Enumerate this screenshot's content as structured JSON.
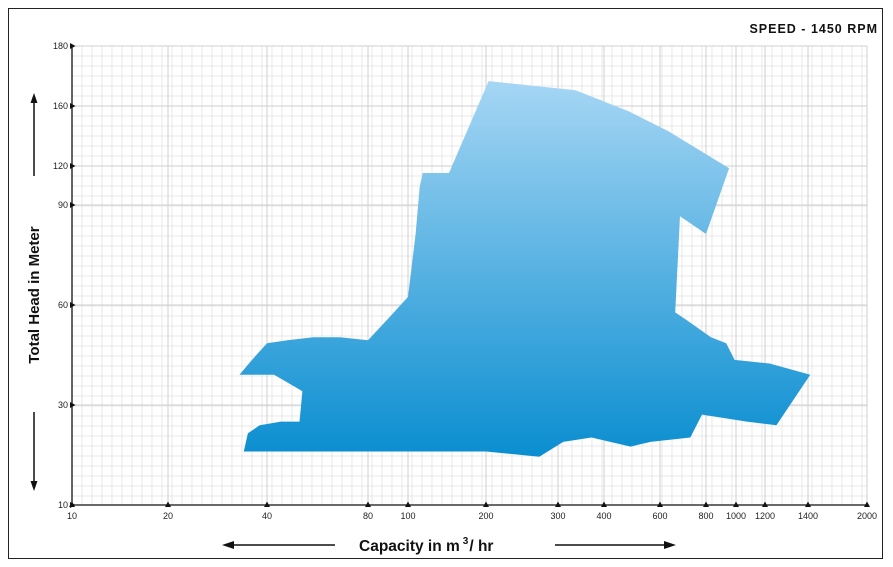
{
  "chart_data": {
    "type": "area",
    "title": "SPEED - 1450 RPM",
    "xlabel_prefix": "Capacity in m",
    "xlabel_sup": "3",
    "xlabel_suffix": "/ hr",
    "ylabel": "Total Head in Meter",
    "x_scale": "log",
    "y_scale": "log",
    "xlim": [
      10,
      2000
    ],
    "ylim": [
      10,
      180
    ],
    "x_ticks": [
      {
        "value": 10,
        "label": "10"
      },
      {
        "value": 20,
        "label": "20"
      },
      {
        "value": 40,
        "label": "40"
      },
      {
        "value": 80,
        "label": "80"
      },
      {
        "value": 100,
        "label": "100"
      },
      {
        "value": 200,
        "label": "200"
      },
      {
        "value": 300,
        "label": "300"
      },
      {
        "value": 400,
        "label": "400"
      },
      {
        "value": 600,
        "label": "600"
      },
      {
        "value": 800,
        "label": "800"
      },
      {
        "value": 1000,
        "label": "1000"
      },
      {
        "value": 1200,
        "label": "1200"
      },
      {
        "value": 1400,
        "label": "1400"
      },
      {
        "value": 2000,
        "label": "2000"
      }
    ],
    "y_ticks": [
      {
        "value": 10,
        "label": "10"
      },
      {
        "value": 30,
        "label": "30"
      },
      {
        "value": 60,
        "label": "60"
      },
      {
        "value": 90,
        "label": "90"
      },
      {
        "value": 120,
        "label": "120"
      },
      {
        "value": 160,
        "label": "160"
      },
      {
        "value": 180,
        "label": "180"
      }
    ],
    "grid": true,
    "fill_color_top": "#a6d6f4",
    "fill_color_bottom": "#0a8ed0",
    "coverage_region": [
      {
        "x": 33,
        "y": 37
      },
      {
        "x": 36,
        "y": 41
      },
      {
        "x": 40,
        "y": 46
      },
      {
        "x": 46,
        "y": 47
      },
      {
        "x": 55,
        "y": 48
      },
      {
        "x": 66,
        "y": 48
      },
      {
        "x": 80,
        "y": 47
      },
      {
        "x": 90,
        "y": 55
      },
      {
        "x": 100,
        "y": 62
      },
      {
        "x": 107,
        "y": 80
      },
      {
        "x": 111,
        "y": 103
      },
      {
        "x": 114,
        "y": 114
      },
      {
        "x": 144,
        "y": 114
      },
      {
        "x": 203,
        "y": 168
      },
      {
        "x": 335,
        "y": 165
      },
      {
        "x": 478,
        "y": 156
      },
      {
        "x": 630,
        "y": 142
      },
      {
        "x": 950,
        "y": 118
      },
      {
        "x": 800,
        "y": 80
      },
      {
        "x": 680,
        "y": 86
      },
      {
        "x": 660,
        "y": 57
      },
      {
        "x": 710,
        "y": 54
      },
      {
        "x": 830,
        "y": 48
      },
      {
        "x": 930,
        "y": 46
      },
      {
        "x": 990,
        "y": 41
      },
      {
        "x": 1220,
        "y": 40
      },
      {
        "x": 1420,
        "y": 37
      },
      {
        "x": 1250,
        "y": 24
      },
      {
        "x": 1070,
        "y": 25
      },
      {
        "x": 780,
        "y": 27
      },
      {
        "x": 725,
        "y": 21
      },
      {
        "x": 560,
        "y": 20
      },
      {
        "x": 485,
        "y": 19
      },
      {
        "x": 370,
        "y": 21
      },
      {
        "x": 310,
        "y": 20
      },
      {
        "x": 270,
        "y": 17
      },
      {
        "x": 200,
        "y": 18
      },
      {
        "x": 130,
        "y": 18
      },
      {
        "x": 100,
        "y": 18
      },
      {
        "x": 70,
        "y": 18
      },
      {
        "x": 50,
        "y": 18
      },
      {
        "x": 42,
        "y": 18
      },
      {
        "x": 37,
        "y": 18
      },
      {
        "x": 34,
        "y": 18
      },
      {
        "x": 35,
        "y": 22
      },
      {
        "x": 38,
        "y": 24
      },
      {
        "x": 44,
        "y": 25
      },
      {
        "x": 50,
        "y": 25
      },
      {
        "x": 51,
        "y": 33
      },
      {
        "x": 42,
        "y": 37
      }
    ]
  }
}
